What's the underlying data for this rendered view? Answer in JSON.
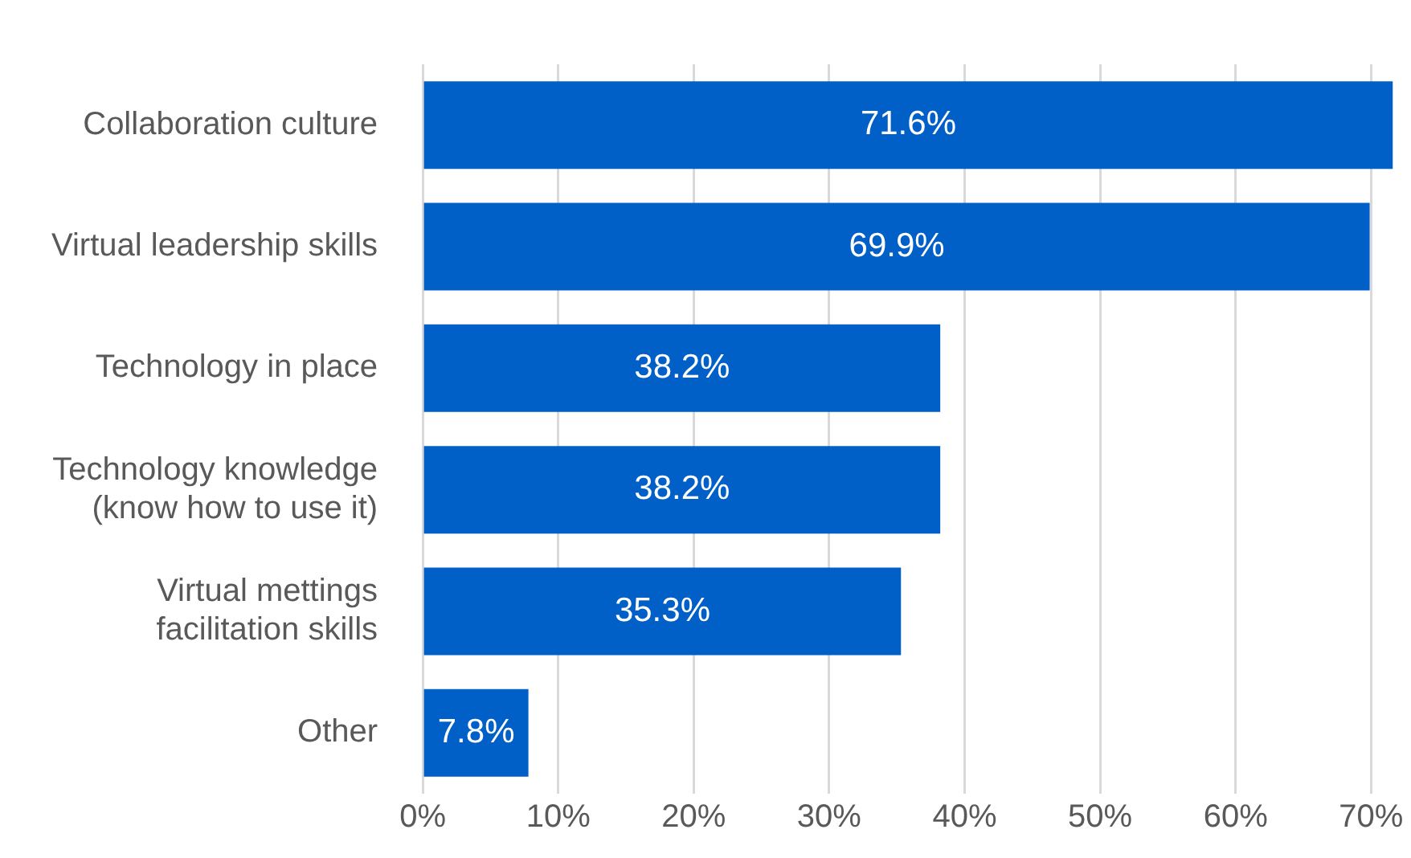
{
  "chart_data": {
    "type": "bar",
    "orientation": "horizontal",
    "categories": [
      "Collaboration culture",
      "Virtual leadership skills",
      "Technology in place",
      "Technology knowledge\n(know how to use it)",
      "Virtual mettings\nfacilitation skills",
      "Other"
    ],
    "values": [
      71.6,
      69.9,
      38.2,
      38.2,
      35.3,
      7.8
    ],
    "value_labels": [
      "71.6%",
      "69.9%",
      "38.2%",
      "38.2%",
      "35.3%",
      "7.8%"
    ],
    "color": "#0060c8",
    "xlim": [
      0,
      72
    ],
    "xticks": [
      {
        "value": 0,
        "label": "0%"
      },
      {
        "value": 10,
        "label": "10%"
      },
      {
        "value": 20,
        "label": "20%"
      },
      {
        "value": 30,
        "label": "30%"
      },
      {
        "value": 40,
        "label": "40%"
      },
      {
        "value": 50,
        "label": "50%"
      },
      {
        "value": 60,
        "label": "60%"
      },
      {
        "value": 70,
        "label": "70%"
      }
    ],
    "grid": "x",
    "legend": false
  }
}
